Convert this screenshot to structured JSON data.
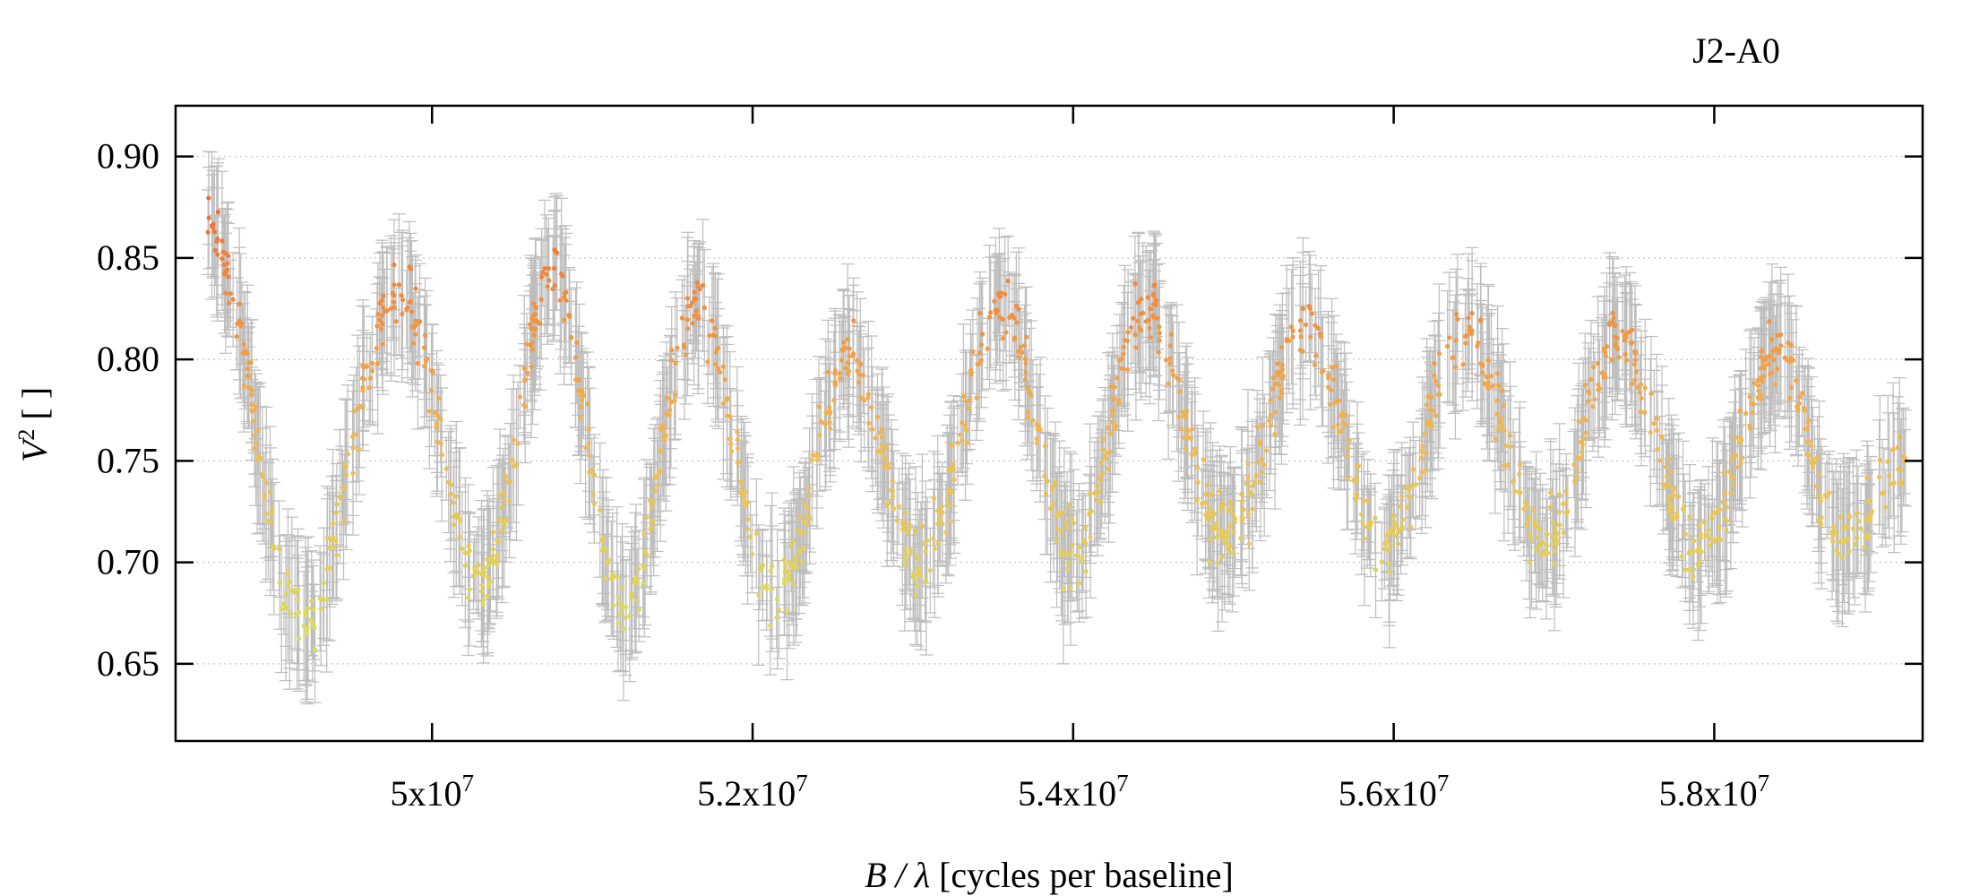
{
  "chart_data": {
    "type": "scatter",
    "title": "J2-A0",
    "xlabel_italic": "B / λ",
    "xlabel_rest": " [cycles per baseline]",
    "ylabel_main": "V",
    "ylabel_sup": "2",
    "ylabel_rest": " [ ]",
    "xlim": [
      48400000,
      59300000
    ],
    "ylim": [
      0.612,
      0.925
    ],
    "x_ticks": [
      {
        "value": 50000000,
        "mantissa": "5x10",
        "exp": "7"
      },
      {
        "value": 52000000,
        "mantissa": "5.2x10",
        "exp": "7"
      },
      {
        "value": 54000000,
        "mantissa": "5.4x10",
        "exp": "7"
      },
      {
        "value": 56000000,
        "mantissa": "5.6x10",
        "exp": "7"
      },
      {
        "value": 58000000,
        "mantissa": "5.8x10",
        "exp": "7"
      }
    ],
    "y_ticks": [
      {
        "value": 0.65,
        "label": "0.65"
      },
      {
        "value": 0.7,
        "label": "0.70"
      },
      {
        "value": 0.75,
        "label": "0.75"
      },
      {
        "value": 0.8,
        "label": "0.80"
      },
      {
        "value": 0.85,
        "label": "0.85"
      },
      {
        "value": 0.9,
        "label": "0.90"
      }
    ],
    "grid": "horizontal dotted",
    "x_range_of_data": [
      48600000,
      59200000
    ],
    "n_points": 1600,
    "point_color_low": "#d4e85c",
    "point_color_high": "#f26b2e",
    "color_scale_range": [
      0.64,
      0.88
    ],
    "series": [
      {
        "envelope": [
          {
            "x": 48600000,
            "y": 0.865
          },
          {
            "x": 49200000,
            "y": 0.67
          },
          {
            "x": 49800000,
            "y": 0.835
          },
          {
            "x": 50300000,
            "y": 0.69
          },
          {
            "x": 50750000,
            "y": 0.84
          },
          {
            "x": 51200000,
            "y": 0.675
          },
          {
            "x": 51650000,
            "y": 0.825
          },
          {
            "x": 52150000,
            "y": 0.685
          },
          {
            "x": 52600000,
            "y": 0.8
          },
          {
            "x": 53050000,
            "y": 0.7
          },
          {
            "x": 53550000,
            "y": 0.825
          },
          {
            "x": 54000000,
            "y": 0.705
          },
          {
            "x": 54450000,
            "y": 0.825
          },
          {
            "x": 54950000,
            "y": 0.715
          },
          {
            "x": 55450000,
            "y": 0.815
          },
          {
            "x": 55950000,
            "y": 0.71
          },
          {
            "x": 56450000,
            "y": 0.815
          },
          {
            "x": 56950000,
            "y": 0.71
          },
          {
            "x": 57400000,
            "y": 0.81
          },
          {
            "x": 57900000,
            "y": 0.705
          },
          {
            "x": 58400000,
            "y": 0.805
          },
          {
            "x": 58800000,
            "y": 0.71
          },
          {
            "x": 59200000,
            "y": 0.75
          }
        ],
        "error_y_typical": 0.025,
        "error_x_typical": 40000,
        "scatter_y": 0.014
      }
    ]
  }
}
